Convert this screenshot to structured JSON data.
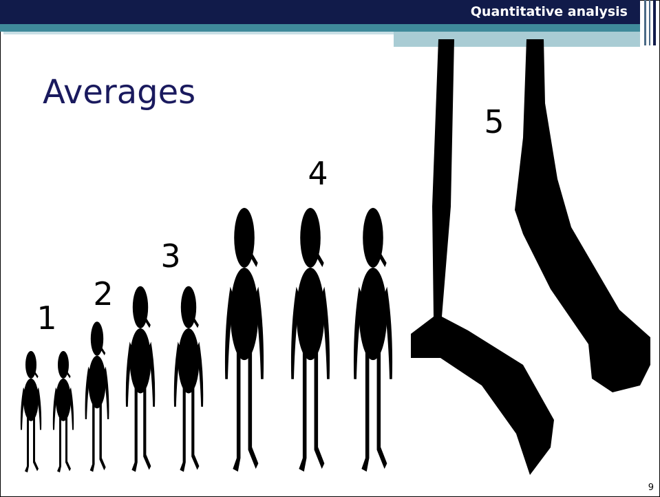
{
  "header": {
    "title": "Quantitative analysis"
  },
  "slide": {
    "title": "Averages",
    "labels": [
      "1",
      "2",
      "3",
      "4",
      "5"
    ],
    "page_number": "9"
  }
}
